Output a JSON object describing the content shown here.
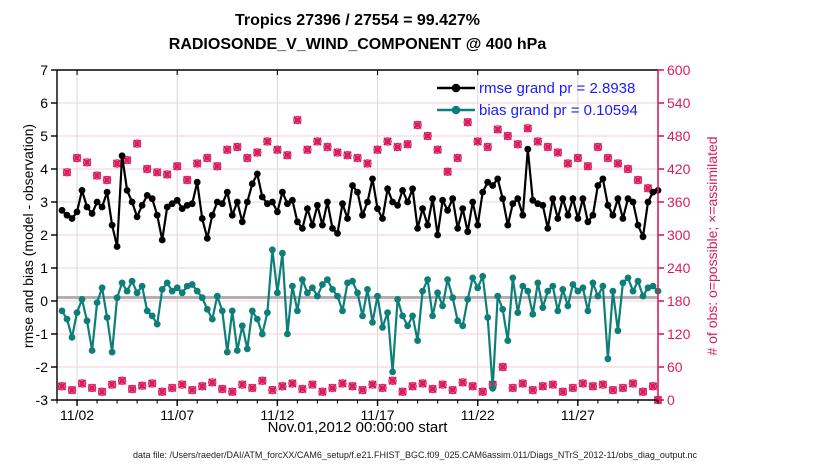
{
  "titles": {
    "line1": "Tropics 27396 / 27554 = 99.427%",
    "line2": "RADIOSONDE_V_WIND_COMPONENT @ 400 hPa"
  },
  "legend": [
    {
      "label": "rmse grand pr = 2.8938",
      "color": "#000000"
    },
    {
      "label": "bias grand pr = 0.10594",
      "color": "#0e7f78"
    }
  ],
  "axes": {
    "ylabel_left": "rmse and bias (model - observation)",
    "ylabel_right": "# of obs: o=possible; ×=assimilated",
    "xlabel": "Nov.01,2012 00:00:00 start",
    "yticks_left": [
      7,
      6,
      5,
      4,
      3,
      2,
      1,
      0,
      -1,
      -2,
      -3
    ],
    "ylim_left": [
      -3,
      7
    ],
    "yticks_right": [
      600,
      540,
      480,
      420,
      360,
      300,
      240,
      180,
      120,
      60,
      0
    ],
    "ylim_right": [
      0,
      600
    ],
    "xtick_labels": [
      "11/02",
      "11/07",
      "11/12",
      "11/17",
      "11/22",
      "11/27"
    ],
    "xtick_days": [
      1,
      6,
      11,
      16,
      21,
      26
    ],
    "x_range_days": [
      0,
      30
    ]
  },
  "footer": {
    "datafile": "data file: /Users/raeder/DAI/ATM_forcXX/CAM6_setup/f.e21.FHIST_BGC.f09_025.CAM6assim.011/Diags_NTrS_2012-11/obs_diag_output.nc"
  },
  "colors": {
    "rmse": "#000000",
    "bias": "#0e7f78",
    "obs": "#d81e5b",
    "legend_text": "#1a1aff",
    "grid_h": "#f6cfdc",
    "grid_v": "#d9d9d9",
    "grand_line": "#b0b0b0",
    "right_axis": "#d81e5b"
  },
  "chart_data": {
    "type": "line",
    "note": "120 samples, 6-hourly from Nov 01 2012 06:00 to Dec 01 2012 00:00; values estimated from plot",
    "points_per_day": 4,
    "grand_rmse": 2.8938,
    "grand_bias": 0.10594,
    "obs_possible_total": 27396,
    "obs_total": 27554,
    "percent_assimilated": 99.427,
    "series": [
      {
        "name": "rmse",
        "axis": "left",
        "values": [
          2.75,
          2.6,
          2.5,
          2.7,
          3.35,
          2.85,
          2.65,
          3.0,
          2.85,
          3.3,
          2.3,
          1.65,
          4.4,
          3.35,
          3.0,
          2.55,
          2.9,
          3.2,
          3.1,
          2.6,
          1.85,
          2.85,
          2.95,
          3.05,
          2.8,
          2.9,
          2.95,
          3.6,
          2.5,
          1.9,
          2.6,
          3.0,
          2.95,
          3.3,
          2.6,
          3.0,
          2.4,
          3.0,
          3.55,
          3.85,
          3.15,
          2.95,
          3.0,
          2.7,
          3.3,
          2.95,
          3.05,
          2.4,
          2.2,
          2.8,
          2.3,
          2.9,
          2.3,
          3.0,
          2.2,
          2.05,
          2.95,
          2.5,
          3.5,
          3.3,
          2.6,
          3.0,
          3.7,
          2.8,
          2.5,
          3.4,
          3.0,
          2.9,
          3.35,
          3.0,
          3.4,
          2.2,
          2.8,
          2.3,
          3.1,
          2.0,
          3.05,
          2.75,
          3.1,
          2.2,
          2.8,
          2.1,
          3.0,
          2.3,
          3.3,
          3.6,
          3.5,
          3.7,
          3.1,
          2.3,
          2.95,
          3.1,
          2.6,
          4.6,
          3.05,
          2.95,
          2.9,
          2.2,
          3.1,
          2.5,
          3.1,
          2.6,
          3.1,
          2.5,
          3.1,
          2.4,
          2.6,
          3.5,
          3.7,
          2.9,
          2.6,
          3.1,
          2.5,
          3.1,
          3.0,
          2.3,
          1.95,
          3.0,
          3.3,
          3.35
        ]
      },
      {
        "name": "bias",
        "axis": "left",
        "values": [
          -0.3,
          -0.55,
          -1.1,
          -0.35,
          0.05,
          -0.6,
          -1.5,
          -0.05,
          0.4,
          -0.5,
          -1.55,
          0.1,
          0.55,
          0.3,
          0.6,
          0.25,
          0.45,
          -0.3,
          -0.45,
          -0.7,
          0.35,
          0.55,
          0.3,
          0.4,
          0.25,
          0.45,
          0.5,
          0.3,
          0.1,
          -0.25,
          -0.55,
          0.15,
          -0.3,
          -1.55,
          -0.3,
          -1.5,
          -0.75,
          -1.45,
          -0.3,
          -0.55,
          -1.0,
          -0.35,
          1.55,
          0.25,
          1.45,
          -1.0,
          0.45,
          -0.3,
          0.65,
          0.25,
          0.4,
          0.15,
          0.5,
          0.65,
          0.35,
          0.15,
          -0.3,
          0.55,
          0.6,
          0.25,
          -0.45,
          0.35,
          -0.65,
          0.15,
          -0.8,
          -0.35,
          -2.15,
          0.05,
          -0.45,
          -0.75,
          -0.45,
          -1.2,
          0.3,
          0.65,
          -0.45,
          0.25,
          -0.15,
          0.65,
          0.1,
          -0.6,
          -0.75,
          0.05,
          0.7,
          0.4,
          0.75,
          -0.5,
          -2.65,
          0.15,
          -0.25,
          -1.2,
          0.7,
          -0.35,
          0.45,
          0.3,
          -0.4,
          0.55,
          -0.2,
          0.3,
          0.45,
          -0.3,
          0.35,
          -0.15,
          0.5,
          0.3,
          0.4,
          -0.3,
          0.55,
          0.15,
          0.45,
          -1.75,
          0.3,
          -0.9,
          0.55,
          0.7,
          0.3,
          0.6,
          0.15,
          0.4,
          0.45,
          0.3
        ]
      },
      {
        "name": "obs_count",
        "axis": "right",
        "marker": "o-and-x",
        "values": [
          25,
          414,
          18,
          440,
          30,
          432,
          22,
          408,
          15,
          400,
          28,
          430,
          35,
          436,
          20,
          466,
          26,
          420,
          30,
          414,
          15,
          410,
          22,
          425,
          28,
          400,
          18,
          430,
          25,
          440,
          32,
          425,
          20,
          455,
          15,
          460,
          28,
          440,
          22,
          450,
          35,
          470,
          18,
          455,
          25,
          445,
          30,
          509,
          20,
          455,
          28,
          470,
          15,
          460,
          22,
          450,
          30,
          445,
          25,
          440,
          18,
          430,
          28,
          455,
          22,
          470,
          35,
          460,
          15,
          465,
          25,
          500,
          30,
          480,
          20,
          455,
          28,
          415,
          18,
          440,
          32,
          505,
          25,
          470,
          15,
          460,
          28,
          492,
          60,
          480,
          22,
          465,
          30,
          494,
          18,
          470,
          25,
          460,
          28,
          450,
          15,
          430,
          22,
          440,
          30,
          425,
          25,
          460,
          28,
          440,
          18,
          430,
          22,
          420,
          30,
          400,
          15,
          385,
          25,
          0
        ]
      }
    ]
  }
}
